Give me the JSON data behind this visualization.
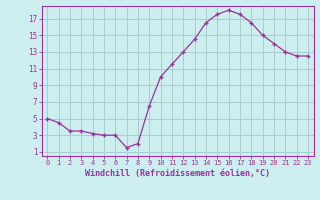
{
  "x": [
    0,
    1,
    2,
    3,
    4,
    5,
    6,
    7,
    8,
    9,
    10,
    11,
    12,
    13,
    14,
    15,
    16,
    17,
    18,
    19,
    20,
    21,
    22,
    23
  ],
  "y": [
    5.0,
    4.5,
    3.5,
    3.5,
    3.2,
    3.0,
    3.0,
    1.5,
    2.0,
    6.5,
    10.0,
    11.5,
    13.0,
    14.5,
    16.5,
    17.5,
    18.0,
    17.5,
    16.5,
    15.0,
    14.0,
    13.0,
    12.5,
    12.5
  ],
  "line_color": "#993399",
  "bg_color": "#cceeee",
  "grid_color": "#aacccc",
  "text_color": "#993399",
  "xlabel": "Windchill (Refroidissement éolien,°C)",
  "xtick_labels": [
    "0",
    "1",
    "2",
    "3",
    "4",
    "5",
    "6",
    "7",
    "8",
    "9",
    "10",
    "11",
    "12",
    "13",
    "14",
    "15",
    "16",
    "17",
    "18",
    "19",
    "20",
    "21",
    "22",
    "23"
  ],
  "ytick_labels": [
    "1",
    "3",
    "5",
    "7",
    "9",
    "11",
    "13",
    "15",
    "17"
  ],
  "yticks": [
    1,
    3,
    5,
    7,
    9,
    11,
    13,
    15,
    17
  ],
  "xlim": [
    -0.5,
    23.5
  ],
  "ylim": [
    0.5,
    18.5
  ],
  "marker": "+"
}
